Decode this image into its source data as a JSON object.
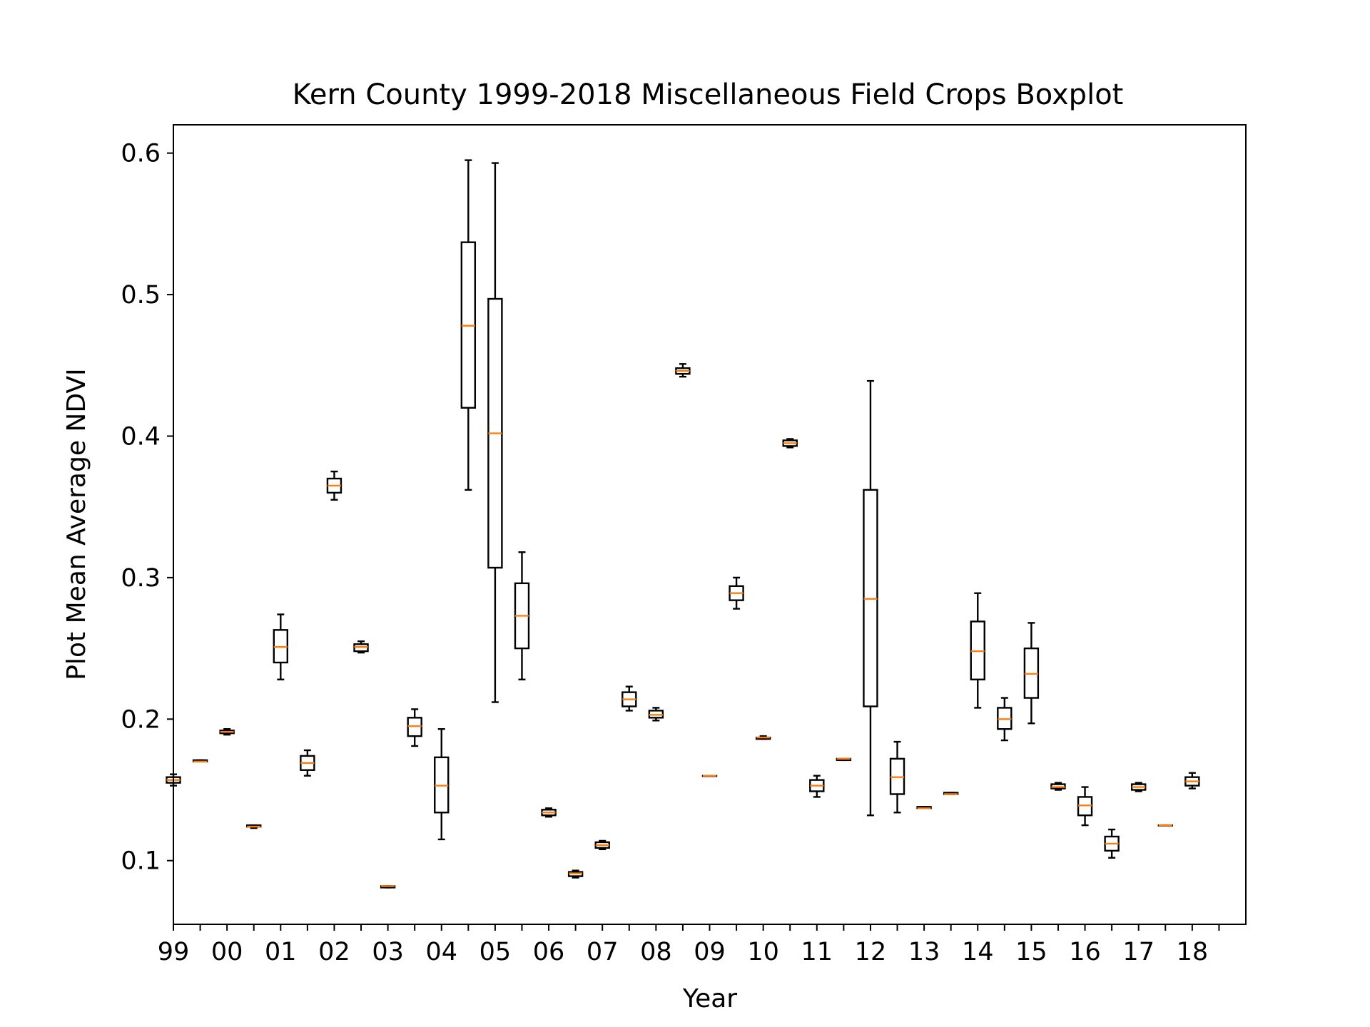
{
  "colors": {
    "box": "#000000",
    "median": "#ff7f0e",
    "background": "#ffffff"
  },
  "chart_data": {
    "type": "boxplot",
    "title": "Kern County 1999-2018 Miscellaneous Field Crops Boxplot",
    "xlabel": "Year",
    "ylabel": "Plot Mean Average NDVI",
    "ylim": [
      0.055,
      0.62
    ],
    "yticks": [
      0.1,
      0.2,
      0.3,
      0.4,
      0.5,
      0.6
    ],
    "ytick_labels": [
      "0.1",
      "0.2",
      "0.3",
      "0.4",
      "0.5",
      "0.6"
    ],
    "xlim": [
      -0.5,
      19.5
    ],
    "xticks": [
      -0.5,
      0.5,
      1.5,
      2.5,
      3.5,
      4.5,
      5.5,
      6.5,
      7.5,
      8.5,
      9.5,
      10.5,
      11.5,
      12.5,
      13.5,
      14.5,
      15.5,
      16.5,
      17.5,
      18.5
    ],
    "xtick_labels": [
      "99",
      "00",
      "01",
      "02",
      "03",
      "04",
      "05",
      "06",
      "07",
      "08",
      "09",
      "10",
      "11",
      "12",
      "13",
      "14",
      "15",
      "16",
      "17",
      "18"
    ],
    "grid": false,
    "boxes": [
      {
        "x": 0.0,
        "whislo": 0.153,
        "q1": 0.155,
        "med": 0.157,
        "q3": 0.159,
        "whishi": 0.161
      },
      {
        "x": 1.0,
        "whislo": 0.17,
        "q1": 0.17,
        "med": 0.17,
        "q3": 0.171,
        "whishi": 0.171
      },
      {
        "x": 2.0,
        "whislo": 0.189,
        "q1": 0.19,
        "med": 0.191,
        "q3": 0.192,
        "whishi": 0.193
      },
      {
        "x": 3.0,
        "whislo": 0.123,
        "q1": 0.124,
        "med": 0.124,
        "q3": 0.125,
        "whishi": 0.125
      },
      {
        "x": 4.0,
        "whislo": 0.228,
        "q1": 0.24,
        "med": 0.251,
        "q3": 0.263,
        "whishi": 0.274
      },
      {
        "x": 5.0,
        "whislo": 0.16,
        "q1": 0.164,
        "med": 0.169,
        "q3": 0.174,
        "whishi": 0.178
      },
      {
        "x": 6.0,
        "whislo": 0.355,
        "q1": 0.36,
        "med": 0.365,
        "q3": 0.37,
        "whishi": 0.375
      },
      {
        "x": 7.0,
        "whislo": 0.247,
        "q1": 0.248,
        "med": 0.251,
        "q3": 0.253,
        "whishi": 0.255
      },
      {
        "x": 8.0,
        "whislo": 0.081,
        "q1": 0.081,
        "med": 0.082,
        "q3": 0.082,
        "whishi": 0.082
      },
      {
        "x": 9.0,
        "whislo": 0.181,
        "q1": 0.188,
        "med": 0.195,
        "q3": 0.201,
        "whishi": 0.207
      },
      {
        "x": 10.0,
        "whislo": 0.115,
        "q1": 0.134,
        "med": 0.153,
        "q3": 0.173,
        "whishi": 0.193
      },
      {
        "x": 11.0,
        "whislo": 0.362,
        "q1": 0.42,
        "med": 0.478,
        "q3": 0.537,
        "whishi": 0.595
      },
      {
        "x": 12.0,
        "whislo": 0.212,
        "q1": 0.307,
        "med": 0.402,
        "q3": 0.497,
        "whishi": 0.593
      },
      {
        "x": 13.0,
        "whislo": 0.228,
        "q1": 0.25,
        "med": 0.273,
        "q3": 0.296,
        "whishi": 0.318
      },
      {
        "x": 14.0,
        "whislo": 0.131,
        "q1": 0.132,
        "med": 0.134,
        "q3": 0.136,
        "whishi": 0.137
      },
      {
        "x": 15.0,
        "whislo": 0.088,
        "q1": 0.089,
        "med": 0.091,
        "q3": 0.092,
        "whishi": 0.093
      },
      {
        "x": 16.0,
        "whislo": 0.108,
        "q1": 0.109,
        "med": 0.111,
        "q3": 0.113,
        "whishi": 0.114
      },
      {
        "x": 17.0,
        "whislo": 0.206,
        "q1": 0.209,
        "med": 0.214,
        "q3": 0.219,
        "whishi": 0.223
      },
      {
        "x": 18.0,
        "whislo": 0.199,
        "q1": 0.201,
        "med": 0.203,
        "q3": 0.206,
        "whishi": 0.208
      },
      {
        "x": 19.0,
        "whislo": 0.442,
        "q1": 0.444,
        "med": 0.446,
        "q3": 0.448,
        "whishi": 0.451
      },
      {
        "x": 20.0,
        "whislo": 0.16,
        "q1": 0.16,
        "med": 0.16,
        "q3": 0.16,
        "whishi": 0.16
      },
      {
        "x": 21.0,
        "whislo": 0.278,
        "q1": 0.284,
        "med": 0.289,
        "q3": 0.294,
        "whishi": 0.3
      },
      {
        "x": 22.0,
        "whislo": 0.186,
        "q1": 0.186,
        "med": 0.187,
        "q3": 0.187,
        "whishi": 0.188
      },
      {
        "x": 23.0,
        "whislo": 0.392,
        "q1": 0.393,
        "med": 0.395,
        "q3": 0.397,
        "whishi": 0.398
      },
      {
        "x": 24.0,
        "whislo": 0.145,
        "q1": 0.149,
        "med": 0.153,
        "q3": 0.157,
        "whishi": 0.16
      },
      {
        "x": 25.0,
        "whislo": 0.171,
        "q1": 0.171,
        "med": 0.172,
        "q3": 0.172,
        "whishi": 0.172
      },
      {
        "x": 26.0,
        "whislo": 0.132,
        "q1": 0.209,
        "med": 0.285,
        "q3": 0.362,
        "whishi": 0.439
      },
      {
        "x": 27.0,
        "whislo": 0.134,
        "q1": 0.147,
        "med": 0.159,
        "q3": 0.172,
        "whishi": 0.184
      },
      {
        "x": 28.0,
        "whislo": 0.137,
        "q1": 0.137,
        "med": 0.137,
        "q3": 0.138,
        "whishi": 0.138
      },
      {
        "x": 29.0,
        "whislo": 0.147,
        "q1": 0.147,
        "med": 0.147,
        "q3": 0.148,
        "whishi": 0.148
      },
      {
        "x": 30.0,
        "whislo": 0.208,
        "q1": 0.228,
        "med": 0.248,
        "q3": 0.269,
        "whishi": 0.289
      },
      {
        "x": 31.0,
        "whislo": 0.185,
        "q1": 0.193,
        "med": 0.2,
        "q3": 0.208,
        "whishi": 0.215
      },
      {
        "x": 32.0,
        "whislo": 0.197,
        "q1": 0.215,
        "med": 0.232,
        "q3": 0.25,
        "whishi": 0.268
      },
      {
        "x": 33.0,
        "whislo": 0.15,
        "q1": 0.151,
        "med": 0.152,
        "q3": 0.154,
        "whishi": 0.155
      },
      {
        "x": 34.0,
        "whislo": 0.125,
        "q1": 0.132,
        "med": 0.139,
        "q3": 0.145,
        "whishi": 0.152
      },
      {
        "x": 35.0,
        "whislo": 0.102,
        "q1": 0.107,
        "med": 0.112,
        "q3": 0.117,
        "whishi": 0.122
      },
      {
        "x": 36.0,
        "whislo": 0.149,
        "q1": 0.15,
        "med": 0.152,
        "q3": 0.154,
        "whishi": 0.155
      },
      {
        "x": 37.0,
        "whislo": 0.125,
        "q1": 0.125,
        "med": 0.125,
        "q3": 0.125,
        "whishi": 0.125
      },
      {
        "x": 38.0,
        "whislo": 0.151,
        "q1": 0.153,
        "med": 0.156,
        "q3": 0.159,
        "whishi": 0.162
      }
    ]
  }
}
